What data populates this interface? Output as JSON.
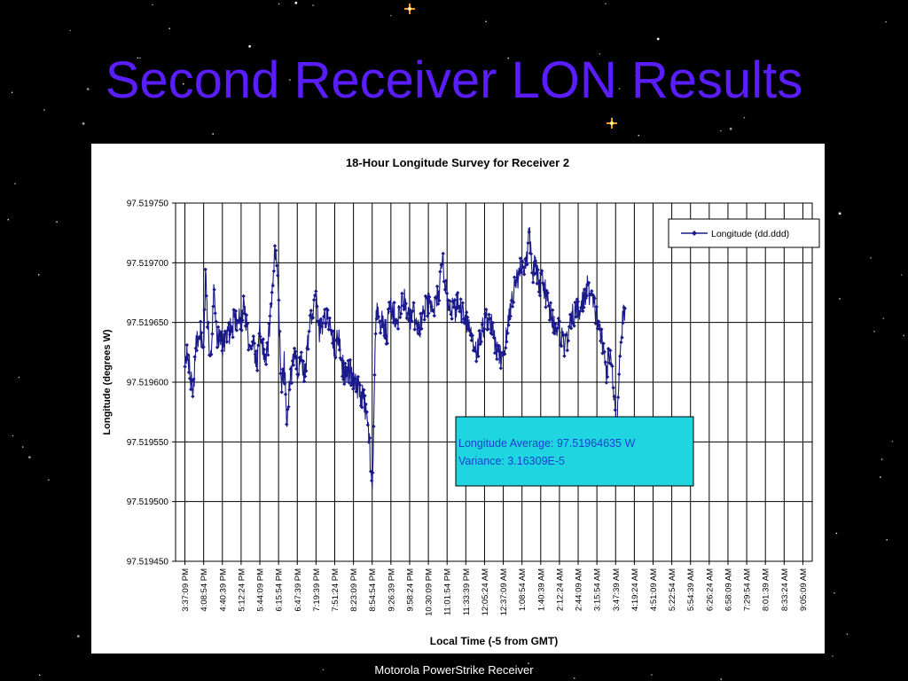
{
  "slide": {
    "title": "Second Receiver LON Results",
    "footer": "Motorola PowerStrike Receiver",
    "title_color": "#5a1dff",
    "background": "#000000"
  },
  "chart_data": {
    "type": "line",
    "title": "18-Hour Longitude Survey for Receiver 2",
    "xlabel": "Local Time (-5 from GMT)",
    "ylabel": "Longitude (degrees W)",
    "ylim": [
      97.51945,
      97.51975
    ],
    "yticks": [
      "97.519750",
      "97.519700",
      "97.519650",
      "97.519600",
      "97.519550",
      "97.519500",
      "97.519450"
    ],
    "categories": [
      "3:37:09 PM",
      "4:08:54 PM",
      "4:40:39 PM",
      "5:12:24 PM",
      "5:44:09 PM",
      "6:15:54 PM",
      "6:47:39 PM",
      "7:19:39 PM",
      "7:51:24 PM",
      "8:23:09 PM",
      "8:54:54 PM",
      "9:26:39 PM",
      "9:58:24 PM",
      "10:30:09 PM",
      "11:01:54 PM",
      "11:33:39 PM",
      "12:05:24 AM",
      "12:37:09 AM",
      "1:08:54 AM",
      "1:40:39 AM",
      "2:12:24 AM",
      "2:44:09 AM",
      "3:15:54 AM",
      "3:47:39 AM",
      "4:19:24 AM",
      "4:51:09 AM",
      "5:22:54 AM",
      "5:54:39 AM",
      "6:26:24 AM",
      "6:58:09 AM",
      "7:29:54 AM",
      "8:01:39 AM",
      "8:33:24 AM",
      "9:05:09 AM"
    ],
    "series": [
      {
        "name": "Longitude (dd.ddd)",
        "color": "#1a1a8c",
        "anchors": [
          [
            0,
            97.51962
          ],
          [
            0.15,
            97.51963
          ],
          [
            0.3,
            97.5196
          ],
          [
            0.45,
            97.519595
          ],
          [
            0.6,
            97.51963
          ],
          [
            0.8,
            97.519645
          ],
          [
            1.0,
            97.519625
          ],
          [
            1.1,
            97.51969
          ],
          [
            1.25,
            97.51964
          ],
          [
            1.4,
            97.519615
          ],
          [
            1.55,
            97.51969
          ],
          [
            1.7,
            97.51964
          ],
          [
            2.0,
            97.51963
          ],
          [
            2.3,
            97.51964
          ],
          [
            2.6,
            97.51965
          ],
          [
            2.8,
            97.519655
          ],
          [
            3.0,
            97.51965
          ],
          [
            3.15,
            97.519665
          ],
          [
            3.3,
            97.51965
          ],
          [
            3.5,
            97.51962
          ],
          [
            3.7,
            97.51963
          ],
          [
            3.85,
            97.51961
          ],
          [
            4.0,
            97.51965
          ],
          [
            4.15,
            97.51963
          ],
          [
            4.3,
            97.519612
          ],
          [
            4.5,
            97.51964
          ],
          [
            4.7,
            97.51969
          ],
          [
            4.85,
            97.519715
          ],
          [
            5.0,
            97.51967
          ],
          [
            5.15,
            97.51959
          ],
          [
            5.3,
            97.519615
          ],
          [
            5.45,
            97.519565
          ],
          [
            5.6,
            97.5196
          ],
          [
            5.8,
            97.51962
          ],
          [
            6.0,
            97.519612
          ],
          [
            6.2,
            97.51962
          ],
          [
            6.4,
            97.519605
          ],
          [
            6.6,
            97.51964
          ],
          [
            6.8,
            97.51966
          ],
          [
            7.0,
            97.51967
          ],
          [
            7.2,
            97.51964
          ],
          [
            7.4,
            97.519655
          ],
          [
            7.6,
            97.51965
          ],
          [
            7.8,
            97.51965
          ],
          [
            8.0,
            97.519625
          ],
          [
            8.2,
            97.51964
          ],
          [
            8.4,
            97.519615
          ],
          [
            8.6,
            97.519605
          ],
          [
            8.8,
            97.51961
          ],
          [
            9.0,
            97.5196
          ],
          [
            9.2,
            97.519595
          ],
          [
            9.4,
            97.51959
          ],
          [
            9.55,
            97.519585
          ],
          [
            9.7,
            97.51957
          ],
          [
            9.85,
            97.519555
          ],
          [
            9.92,
            97.51952
          ],
          [
            10.0,
            97.519505
          ],
          [
            10.08,
            97.51956
          ],
          [
            10.15,
            97.51962
          ],
          [
            10.22,
            97.51966
          ],
          [
            10.35,
            97.51965
          ],
          [
            10.5,
            97.51965
          ],
          [
            10.65,
            97.519645
          ],
          [
            10.8,
            97.51964
          ],
          [
            10.9,
            97.519665
          ],
          [
            11.1,
            97.51966
          ],
          [
            11.3,
            97.51965
          ],
          [
            11.5,
            97.51966
          ],
          [
            11.7,
            97.51967
          ],
          [
            11.85,
            97.51966
          ],
          [
            12.0,
            97.51965
          ],
          [
            12.2,
            97.51966
          ],
          [
            12.4,
            97.51964
          ],
          [
            12.6,
            97.51965
          ],
          [
            12.8,
            97.51966
          ],
          [
            13.0,
            97.519665
          ],
          [
            13.2,
            97.51966
          ],
          [
            13.4,
            97.519665
          ],
          [
            13.6,
            97.51968
          ],
          [
            13.8,
            97.5197
          ],
          [
            14.0,
            97.51967
          ],
          [
            14.2,
            97.519665
          ],
          [
            14.4,
            97.51966
          ],
          [
            14.6,
            97.519665
          ],
          [
            14.8,
            97.51966
          ],
          [
            15.0,
            97.519655
          ],
          [
            15.2,
            97.519645
          ],
          [
            15.4,
            97.519635
          ],
          [
            15.6,
            97.519625
          ],
          [
            15.8,
            97.51964
          ],
          [
            16.0,
            97.51965
          ],
          [
            16.2,
            97.519655
          ],
          [
            16.4,
            97.519645
          ],
          [
            16.6,
            97.51963
          ],
          [
            16.8,
            97.51962
          ],
          [
            17.0,
            97.519625
          ],
          [
            17.2,
            97.51964
          ],
          [
            17.4,
            97.519665
          ],
          [
            17.6,
            97.51968
          ],
          [
            17.8,
            97.51969
          ],
          [
            18.0,
            97.5197
          ],
          [
            18.2,
            97.519695
          ],
          [
            18.4,
            97.519725
          ],
          [
            18.55,
            97.51969
          ],
          [
            18.7,
            97.5197
          ],
          [
            18.9,
            97.51968
          ],
          [
            19.1,
            97.51969
          ],
          [
            19.3,
            97.51967
          ],
          [
            19.5,
            97.51966
          ],
          [
            19.7,
            97.51965
          ],
          [
            19.9,
            97.519645
          ],
          [
            20.1,
            97.51964
          ],
          [
            20.3,
            97.51963
          ],
          [
            20.5,
            97.51964
          ],
          [
            20.7,
            97.519655
          ],
          [
            20.9,
            97.51966
          ],
          [
            21.1,
            97.51966
          ],
          [
            21.3,
            97.51967
          ],
          [
            21.5,
            97.51968
          ],
          [
            21.7,
            97.51967
          ],
          [
            21.9,
            97.51966
          ],
          [
            22.1,
            97.51965
          ],
          [
            22.3,
            97.51963
          ],
          [
            22.5,
            97.51961
          ],
          [
            22.7,
            97.519625
          ],
          [
            22.9,
            97.519595
          ],
          [
            23.0,
            97.51958
          ],
          [
            23.06,
            97.51955
          ],
          [
            23.15,
            97.5196
          ],
          [
            23.3,
            97.51964
          ],
          [
            23.4,
            97.519655
          ],
          [
            23.5,
            97.519655
          ]
        ]
      }
    ],
    "legend_position": "top-right",
    "annotation": {
      "lines": [
        "Longitude Average: 97.51964635 W",
        "Variance: 3.16309E-5"
      ],
      "background": "#1fd6e0",
      "text_color": "#1a3fd0"
    },
    "grid": true
  }
}
